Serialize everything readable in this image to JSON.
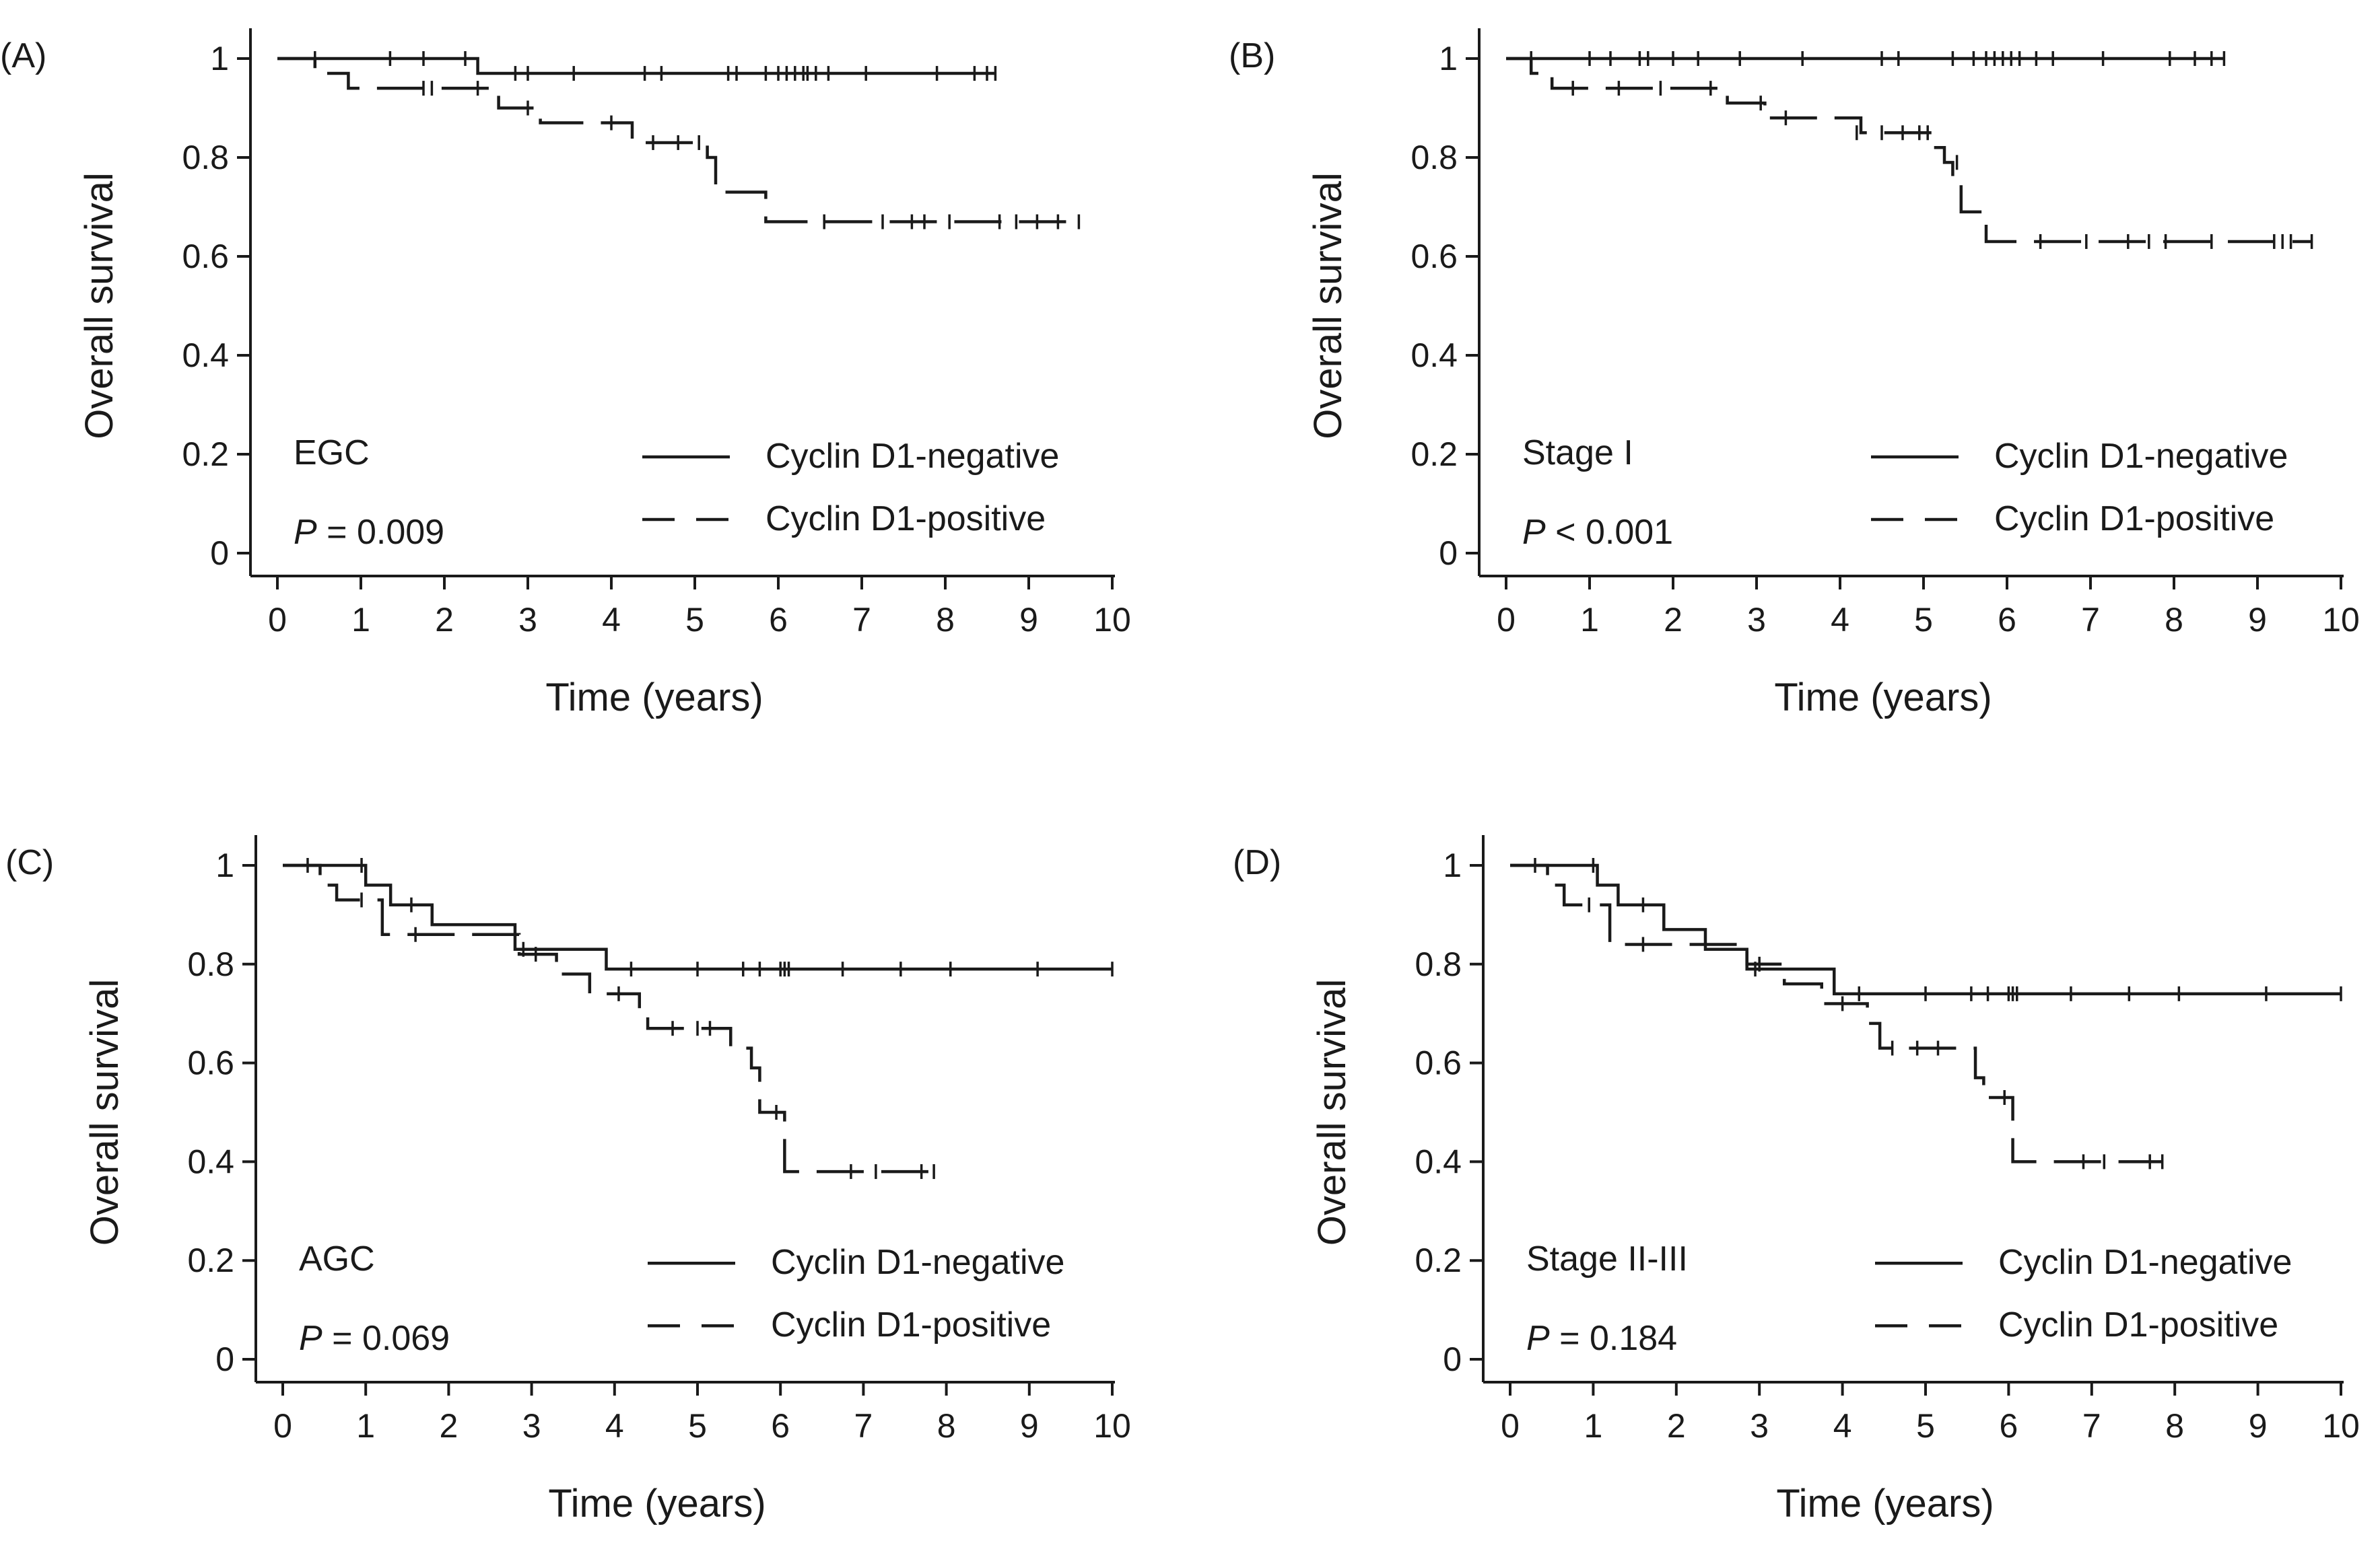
{
  "chart_data": [
    {
      "type": "line",
      "subtype": "kaplan-meier",
      "panel_label": "(A)",
      "group_label": "EGC",
      "p_prefix": "P",
      "p_text": " = 0.009",
      "xlabel": "Time (years)",
      "ylabel": "Overall survival",
      "xlim": [
        0,
        10
      ],
      "ylim": [
        0,
        1
      ],
      "xticks": [
        "0",
        "1",
        "2",
        "3",
        "4",
        "5",
        "6",
        "7",
        "8",
        "9",
        "10"
      ],
      "yticks": [
        "0",
        "0.2",
        "0.4",
        "0.6",
        "0.8",
        "1"
      ],
      "legend_position": "lower-right",
      "series": [
        {
          "name": "Cyclin D1-negative",
          "line_style": "solid",
          "steps": [
            [
              0,
              1.0
            ],
            [
              2.4,
              0.97
            ],
            [
              8.6,
              0.97
            ]
          ],
          "censored": [
            [
              0.45,
              1.0
            ],
            [
              1.35,
              1.0
            ],
            [
              1.75,
              1.0
            ],
            [
              2.25,
              1.0
            ],
            [
              2.85,
              0.97
            ],
            [
              3.0,
              0.97
            ],
            [
              3.55,
              0.97
            ],
            [
              4.4,
              0.97
            ],
            [
              4.6,
              0.97
            ],
            [
              5.4,
              0.97
            ],
            [
              5.5,
              0.97
            ],
            [
              5.85,
              0.97
            ],
            [
              6.0,
              0.97
            ],
            [
              6.1,
              0.97
            ],
            [
              6.2,
              0.97
            ],
            [
              6.3,
              0.97
            ],
            [
              6.35,
              0.97
            ],
            [
              6.45,
              0.97
            ],
            [
              6.6,
              0.97
            ],
            [
              7.05,
              0.97
            ],
            [
              7.9,
              0.97
            ],
            [
              8.35,
              0.97
            ],
            [
              8.5,
              0.97
            ],
            [
              8.6,
              0.97
            ]
          ]
        },
        {
          "name": "Cyclin D1-positive",
          "line_style": "dashed",
          "steps": [
            [
              0,
              1.0
            ],
            [
              0.45,
              0.97
            ],
            [
              0.85,
              0.94
            ],
            [
              2.65,
              0.9
            ],
            [
              3.15,
              0.87
            ],
            [
              4.25,
              0.83
            ],
            [
              5.15,
              0.8
            ],
            [
              5.25,
              0.73
            ],
            [
              5.85,
              0.67
            ],
            [
              9.6,
              0.67
            ]
          ],
          "censored": [
            [
              1.75,
              0.94
            ],
            [
              1.85,
              0.94
            ],
            [
              2.4,
              0.94
            ],
            [
              3.0,
              0.9
            ],
            [
              4.0,
              0.87
            ],
            [
              4.5,
              0.83
            ],
            [
              4.8,
              0.83
            ],
            [
              5.05,
              0.83
            ],
            [
              6.55,
              0.67
            ],
            [
              7.25,
              0.67
            ],
            [
              7.6,
              0.67
            ],
            [
              7.75,
              0.67
            ],
            [
              8.05,
              0.67
            ],
            [
              8.65,
              0.67
            ],
            [
              8.85,
              0.67
            ],
            [
              9.1,
              0.67
            ],
            [
              9.35,
              0.67
            ],
            [
              9.6,
              0.67
            ]
          ]
        }
      ]
    },
    {
      "type": "line",
      "subtype": "kaplan-meier",
      "panel_label": "(B)",
      "group_label": "Stage I",
      "p_prefix": "P",
      "p_text": " < 0.001",
      "xlabel": "Time (years)",
      "ylabel": "Overall survival",
      "xlim": [
        0,
        10
      ],
      "ylim": [
        0,
        1
      ],
      "xticks": [
        "0",
        "1",
        "2",
        "3",
        "4",
        "5",
        "6",
        "7",
        "8",
        "9",
        "10"
      ],
      "yticks": [
        "0",
        "0.2",
        "0.4",
        "0.6",
        "0.8",
        "1"
      ],
      "legend_position": "lower-right",
      "series": [
        {
          "name": "Cyclin D1-negative",
          "line_style": "solid",
          "steps": [
            [
              0,
              1.0
            ],
            [
              8.6,
              1.0
            ]
          ],
          "censored": [
            [
              0.3,
              1.0
            ],
            [
              1.0,
              1.0
            ],
            [
              1.25,
              1.0
            ],
            [
              1.6,
              1.0
            ],
            [
              1.7,
              1.0
            ],
            [
              2.0,
              1.0
            ],
            [
              2.3,
              1.0
            ],
            [
              2.8,
              1.0
            ],
            [
              3.55,
              1.0
            ],
            [
              4.5,
              1.0
            ],
            [
              4.7,
              1.0
            ],
            [
              5.35,
              1.0
            ],
            [
              5.6,
              1.0
            ],
            [
              5.75,
              1.0
            ],
            [
              5.85,
              1.0
            ],
            [
              5.95,
              1.0
            ],
            [
              6.05,
              1.0
            ],
            [
              6.15,
              1.0
            ],
            [
              6.35,
              1.0
            ],
            [
              6.55,
              1.0
            ],
            [
              7.15,
              1.0
            ],
            [
              7.95,
              1.0
            ],
            [
              8.25,
              1.0
            ],
            [
              8.45,
              1.0
            ],
            [
              8.6,
              1.0
            ]
          ]
        },
        {
          "name": "Cyclin D1-positive",
          "line_style": "dashed",
          "steps": [
            [
              0,
              1.0
            ],
            [
              0.3,
              0.97
            ],
            [
              0.55,
              0.94
            ],
            [
              2.65,
              0.91
            ],
            [
              3.1,
              0.88
            ],
            [
              4.25,
              0.85
            ],
            [
              5.1,
              0.82
            ],
            [
              5.25,
              0.79
            ],
            [
              5.35,
              0.75
            ],
            [
              5.45,
              0.69
            ],
            [
              5.75,
              0.63
            ],
            [
              9.65,
              0.63
            ]
          ],
          "censored": [
            [
              0.8,
              0.94
            ],
            [
              1.35,
              0.94
            ],
            [
              1.85,
              0.94
            ],
            [
              2.45,
              0.94
            ],
            [
              3.05,
              0.91
            ],
            [
              3.35,
              0.88
            ],
            [
              4.2,
              0.85
            ],
            [
              4.5,
              0.85
            ],
            [
              4.75,
              0.85
            ],
            [
              4.95,
              0.85
            ],
            [
              5.05,
              0.85
            ],
            [
              5.4,
              0.79
            ],
            [
              6.4,
              0.63
            ],
            [
              6.95,
              0.63
            ],
            [
              7.45,
              0.63
            ],
            [
              7.7,
              0.63
            ],
            [
              7.9,
              0.63
            ],
            [
              8.45,
              0.63
            ],
            [
              9.2,
              0.63
            ],
            [
              9.3,
              0.63
            ],
            [
              9.4,
              0.63
            ],
            [
              9.65,
              0.63
            ]
          ]
        }
      ]
    },
    {
      "type": "line",
      "subtype": "kaplan-meier",
      "panel_label": "(C)",
      "group_label": "AGC",
      "p_prefix": "P",
      "p_text": " = 0.069",
      "xlabel": "Time (years)",
      "ylabel": "Overall survival",
      "xlim": [
        0,
        10
      ],
      "ylim": [
        0,
        1
      ],
      "xticks": [
        "0",
        "1",
        "2",
        "3",
        "4",
        "5",
        "6",
        "7",
        "8",
        "9",
        "10"
      ],
      "yticks": [
        "0",
        "0.2",
        "0.4",
        "0.6",
        "0.8",
        "1"
      ],
      "legend_position": "lower-right",
      "series": [
        {
          "name": "Cyclin D1-negative",
          "line_style": "solid",
          "steps": [
            [
              0,
              1.0
            ],
            [
              1.0,
              0.96
            ],
            [
              1.3,
              0.92
            ],
            [
              1.8,
              0.88
            ],
            [
              2.8,
              0.83
            ],
            [
              3.9,
              0.79
            ],
            [
              10.0,
              0.79
            ]
          ],
          "censored": [
            [
              0.3,
              1.0
            ],
            [
              0.95,
              1.0
            ],
            [
              1.55,
              0.92
            ],
            [
              2.9,
              0.83
            ],
            [
              4.2,
              0.79
            ],
            [
              5.0,
              0.79
            ],
            [
              5.55,
              0.79
            ],
            [
              5.75,
              0.79
            ],
            [
              6.0,
              0.79
            ],
            [
              6.05,
              0.79
            ],
            [
              6.1,
              0.79
            ],
            [
              6.75,
              0.79
            ],
            [
              7.45,
              0.79
            ],
            [
              8.05,
              0.79
            ],
            [
              9.1,
              0.79
            ],
            [
              10.0,
              0.79
            ]
          ]
        },
        {
          "name": "Cyclin D1-positive",
          "line_style": "dashed",
          "steps": [
            [
              0,
              1.0
            ],
            [
              0.45,
              0.96
            ],
            [
              0.65,
              0.93
            ],
            [
              1.2,
              0.86
            ],
            [
              2.85,
              0.82
            ],
            [
              3.3,
              0.78
            ],
            [
              3.7,
              0.74
            ],
            [
              4.3,
              0.7
            ],
            [
              4.4,
              0.67
            ],
            [
              5.4,
              0.63
            ],
            [
              5.65,
              0.59
            ],
            [
              5.75,
              0.5
            ],
            [
              6.05,
              0.38
            ],
            [
              7.85,
              0.38
            ]
          ],
          "censored": [
            [
              0.95,
              0.93
            ],
            [
              1.6,
              0.86
            ],
            [
              3.05,
              0.82
            ],
            [
              4.05,
              0.74
            ],
            [
              4.7,
              0.67
            ],
            [
              5.0,
              0.67
            ],
            [
              5.15,
              0.67
            ],
            [
              5.95,
              0.5
            ],
            [
              6.85,
              0.38
            ],
            [
              7.15,
              0.38
            ],
            [
              7.7,
              0.38
            ],
            [
              7.85,
              0.38
            ]
          ]
        }
      ]
    },
    {
      "type": "line",
      "subtype": "kaplan-meier",
      "panel_label": "(D)",
      "group_label": "Stage II-III",
      "p_prefix": "P",
      "p_text": " = 0.184",
      "xlabel": "Time (years)",
      "ylabel": "Overall survival",
      "xlim": [
        0,
        10
      ],
      "ylim": [
        0,
        1
      ],
      "xticks": [
        "0",
        "1",
        "2",
        "3",
        "4",
        "5",
        "6",
        "7",
        "8",
        "9",
        "10"
      ],
      "yticks": [
        "0",
        "0.2",
        "0.4",
        "0.6",
        "0.8",
        "1"
      ],
      "legend_position": "lower-right",
      "series": [
        {
          "name": "Cyclin D1-negative",
          "line_style": "solid",
          "steps": [
            [
              0,
              1.0
            ],
            [
              1.05,
              0.96
            ],
            [
              1.3,
              0.92
            ],
            [
              1.85,
              0.87
            ],
            [
              2.35,
              0.83
            ],
            [
              2.85,
              0.79
            ],
            [
              3.9,
              0.74
            ],
            [
              10.0,
              0.74
            ]
          ],
          "censored": [
            [
              0.3,
              1.0
            ],
            [
              1.0,
              1.0
            ],
            [
              1.6,
              0.92
            ],
            [
              2.95,
              0.79
            ],
            [
              4.2,
              0.74
            ],
            [
              5.0,
              0.74
            ],
            [
              5.55,
              0.74
            ],
            [
              5.75,
              0.74
            ],
            [
              6.0,
              0.74
            ],
            [
              6.05,
              0.74
            ],
            [
              6.1,
              0.74
            ],
            [
              6.75,
              0.74
            ],
            [
              7.45,
              0.74
            ],
            [
              8.05,
              0.74
            ],
            [
              9.1,
              0.74
            ],
            [
              10.0,
              0.74
            ]
          ]
        },
        {
          "name": "Cyclin D1-positive",
          "line_style": "dashed",
          "steps": [
            [
              0,
              1.0
            ],
            [
              0.45,
              0.96
            ],
            [
              0.65,
              0.92
            ],
            [
              1.2,
              0.84
            ],
            [
              2.85,
              0.8
            ],
            [
              3.3,
              0.76
            ],
            [
              3.75,
              0.72
            ],
            [
              4.3,
              0.68
            ],
            [
              4.45,
              0.63
            ],
            [
              5.6,
              0.57
            ],
            [
              5.7,
              0.53
            ],
            [
              6.05,
              0.4
            ],
            [
              7.85,
              0.4
            ]
          ],
          "censored": [
            [
              0.95,
              0.92
            ],
            [
              1.6,
              0.84
            ],
            [
              3.0,
              0.8
            ],
            [
              4.0,
              0.72
            ],
            [
              4.6,
              0.63
            ],
            [
              4.9,
              0.63
            ],
            [
              5.15,
              0.63
            ],
            [
              5.95,
              0.53
            ],
            [
              6.9,
              0.4
            ],
            [
              7.15,
              0.4
            ],
            [
              7.7,
              0.4
            ],
            [
              7.85,
              0.4
            ]
          ]
        }
      ]
    }
  ]
}
